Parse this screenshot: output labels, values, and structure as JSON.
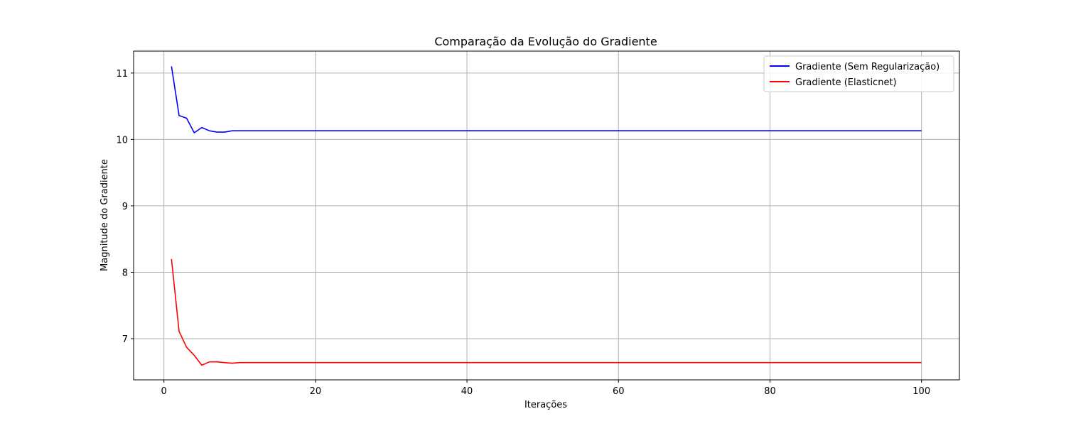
{
  "chart_data": {
    "type": "line",
    "title": "Comparação da Evolução do Gradiente",
    "xlabel": "Iterações",
    "ylabel": "Magnitude do Gradiente",
    "xlim": [
      -4,
      105
    ],
    "ylim": [
      6.38,
      11.33
    ],
    "xticks": [
      0,
      20,
      40,
      60,
      80,
      100
    ],
    "yticks": [
      7,
      8,
      9,
      10,
      11
    ],
    "grid": true,
    "legend_position": "top-right",
    "series": [
      {
        "name": "Gradiente (Sem Regularização)",
        "color": "#0000ff",
        "x_start": 1,
        "x_end": 100,
        "early_values": [
          11.1,
          10.36,
          10.32,
          10.1,
          10.18,
          10.13,
          10.11,
          10.11,
          10.13
        ],
        "plateau_value": 10.13
      },
      {
        "name": "Gradiente (Elasticnet)",
        "color": "#ff0000",
        "x_start": 1,
        "x_end": 100,
        "early_values": [
          8.2,
          7.11,
          6.87,
          6.75,
          6.6,
          6.65,
          6.65,
          6.64,
          6.63,
          6.64
        ],
        "plateau_value": 6.64
      }
    ]
  }
}
